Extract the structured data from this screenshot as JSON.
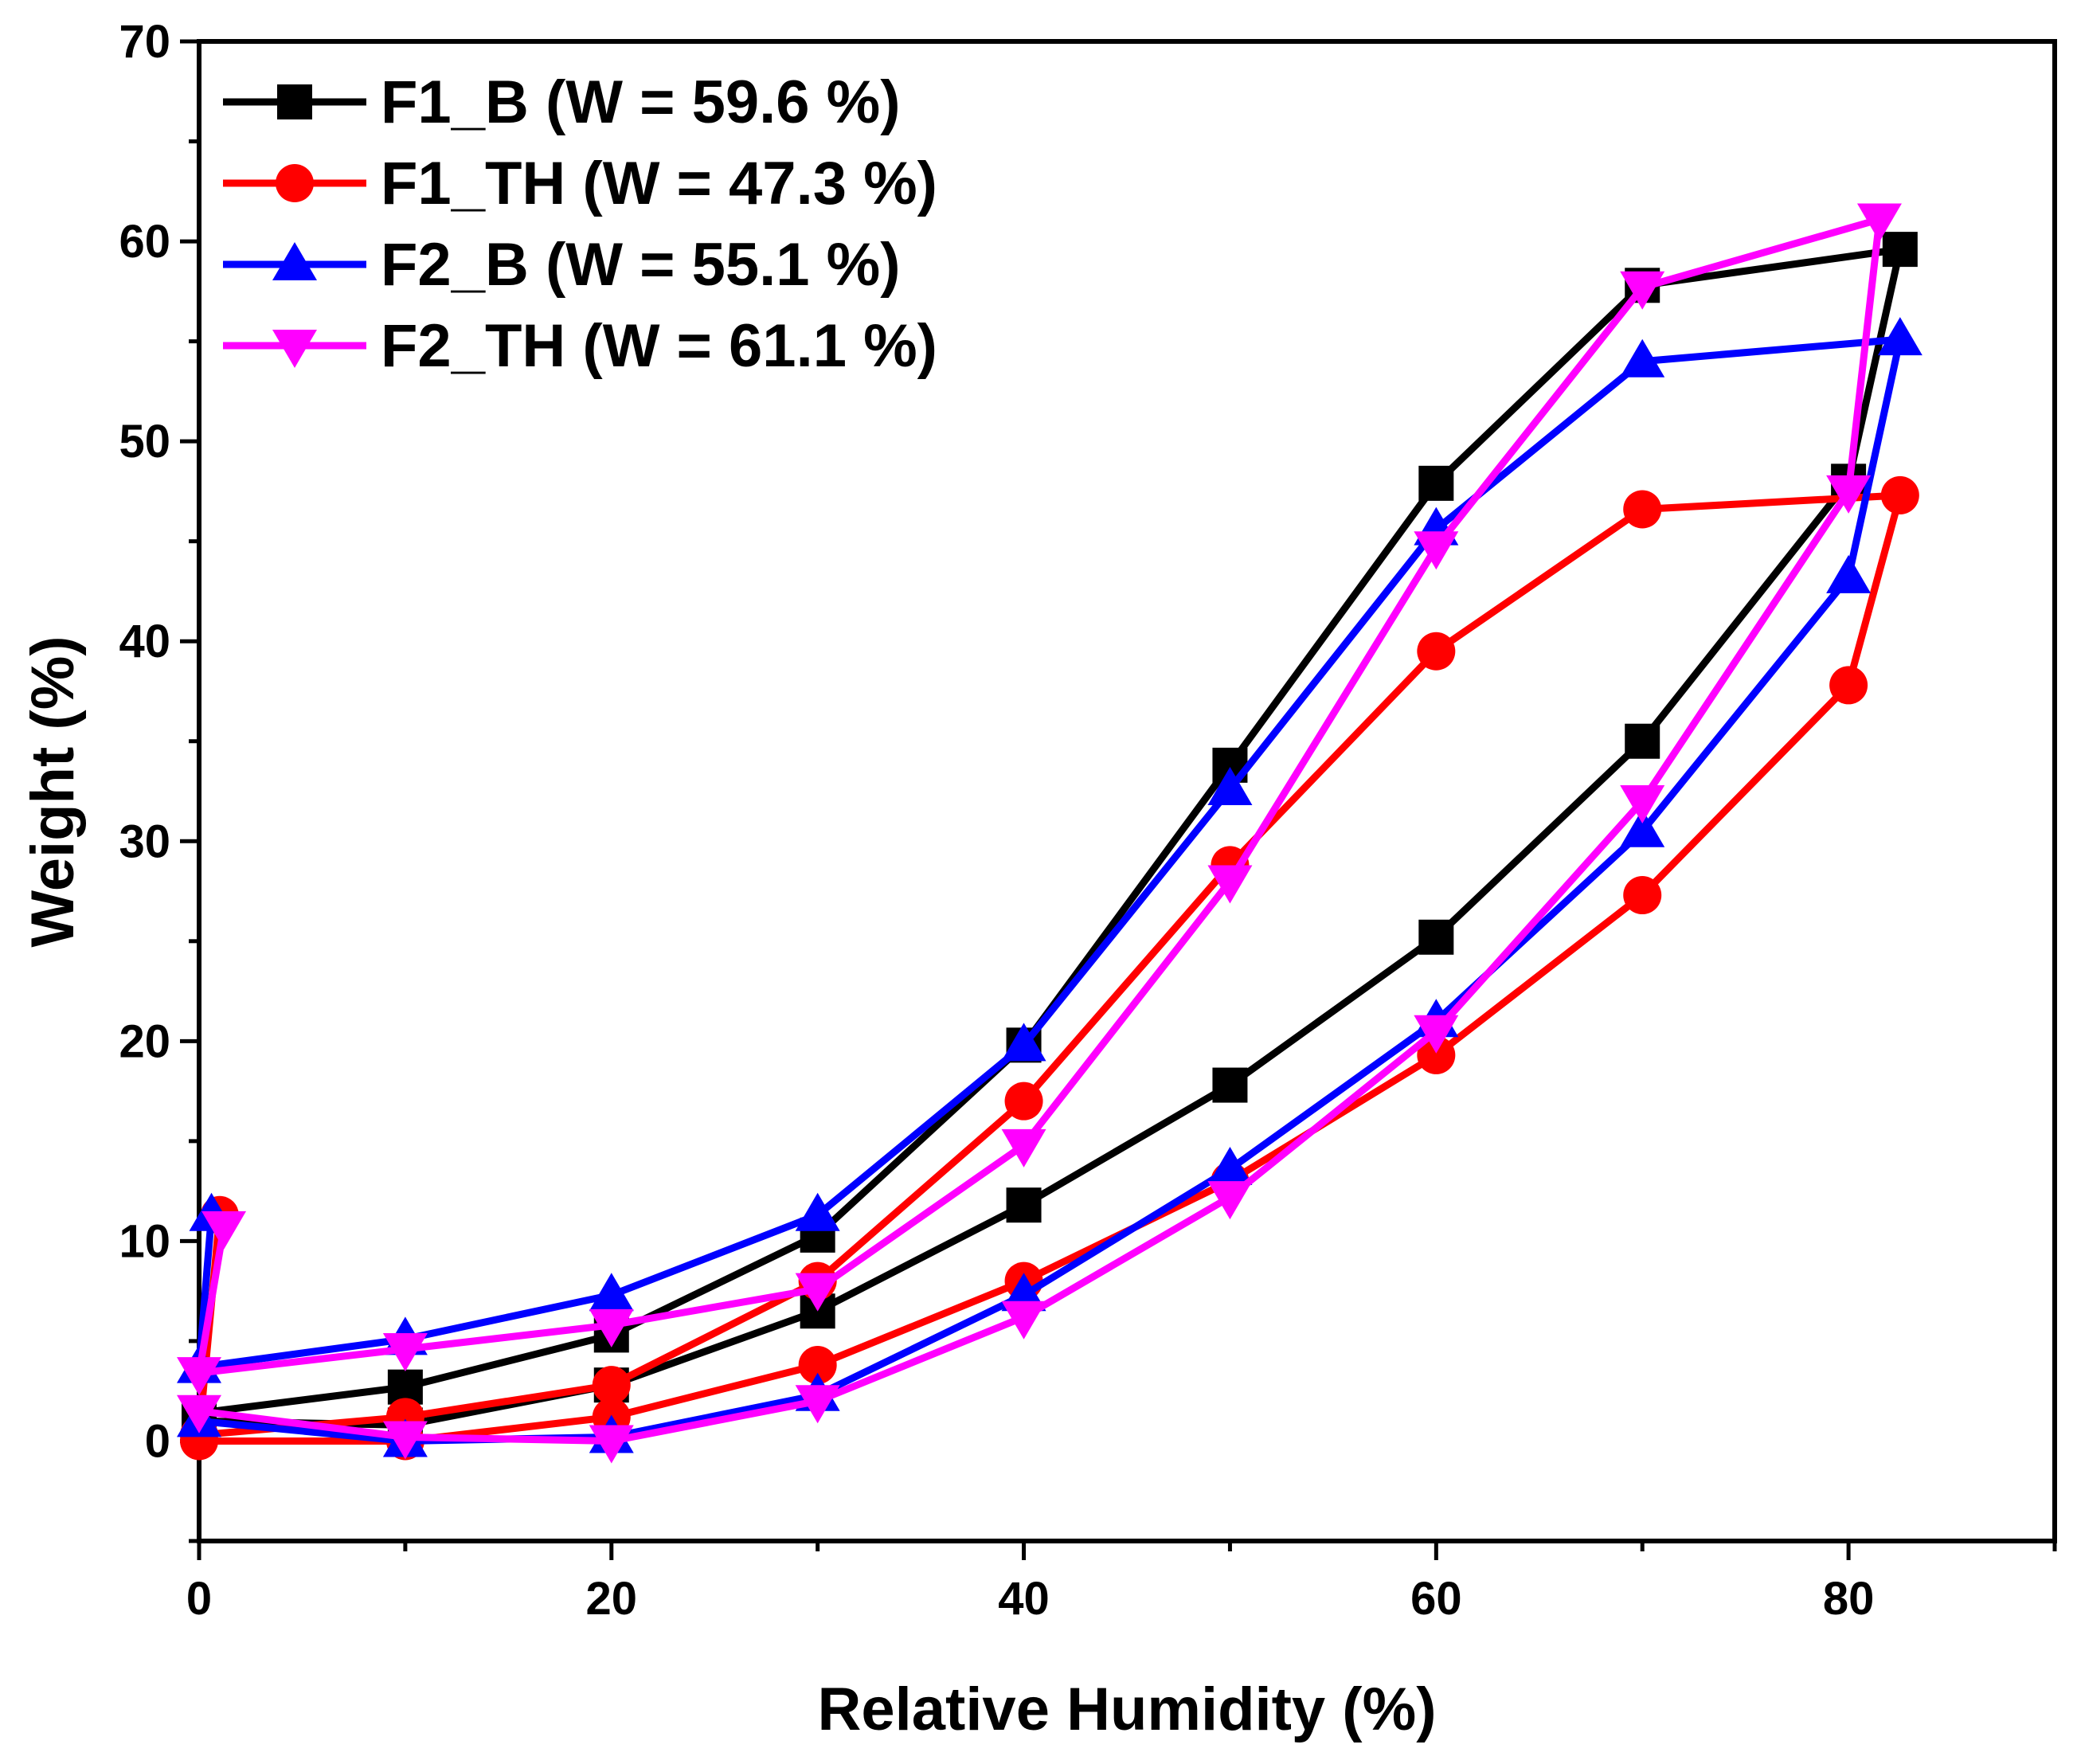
{
  "chart_data": {
    "type": "line",
    "title": "",
    "xlabel": "Relative Humidity (%)",
    "ylabel": "Weight (%)",
    "xlim": [
      0,
      90
    ],
    "ylim": [
      -5,
      70
    ],
    "xticks": [
      0,
      20,
      40,
      60,
      80
    ],
    "xtick_labels": [
      "0",
      "20",
      "40",
      "60",
      "80"
    ],
    "yticks": [
      0,
      10,
      20,
      30,
      40,
      50,
      60,
      70
    ],
    "ytick_labels": [
      "0",
      "10",
      "20",
      "30",
      "40",
      "50",
      "60",
      "70"
    ],
    "grid": false,
    "legend_position": "top-left",
    "series": [
      {
        "name": "F1_B (W = 59.6 %)",
        "color": "#000000",
        "marker": "square",
        "x": [
          0,
          10,
          20,
          30,
          40,
          50,
          60,
          70,
          80,
          82.5,
          70,
          60,
          50,
          40,
          30,
          20,
          10,
          0
        ],
        "y": [
          1.0,
          0.8,
          2.8,
          6.5,
          11.8,
          17.8,
          25.2,
          35.0,
          48.0,
          59.6,
          57.8,
          47.9,
          33.8,
          19.8,
          10.3,
          5.3,
          2.7,
          1.4
        ]
      },
      {
        "name": "F1_TH (W = 47.3 %)",
        "color": "#ff0000",
        "marker": "circle",
        "x": [
          0,
          10,
          20,
          30,
          40,
          50,
          60,
          70,
          80,
          82.5,
          70,
          60,
          50,
          40,
          30,
          20,
          10,
          0,
          1
        ],
        "y": [
          0.0,
          0.0,
          1.2,
          3.8,
          8.0,
          13.0,
          19.3,
          27.3,
          37.8,
          47.3,
          46.6,
          39.5,
          28.8,
          17.0,
          8.0,
          2.8,
          1.2,
          0.3,
          11.3
        ]
      },
      {
        "name": "F2_B (W = 55.1 %)",
        "color": "#0000ff",
        "marker": "triangle-up",
        "x": [
          0,
          10,
          20,
          30,
          40,
          50,
          60,
          70,
          80,
          82.5,
          70,
          60,
          50,
          40,
          30,
          20,
          10,
          0,
          0.6
        ],
        "y": [
          1.0,
          0.0,
          0.2,
          2.3,
          7.3,
          13.6,
          21.0,
          30.5,
          43.2,
          55.1,
          54.0,
          45.6,
          32.6,
          19.8,
          11.3,
          7.3,
          5.1,
          3.7,
          11.3
        ]
      },
      {
        "name": "F2_TH (W = 61.1 %)",
        "color": "#ff00ff",
        "marker": "triangle-down",
        "x": [
          0,
          10,
          20,
          30,
          40,
          50,
          60,
          70,
          80,
          81.5,
          70,
          60,
          50,
          40,
          30,
          20,
          10,
          0,
          1.2
        ],
        "y": [
          1.5,
          0.2,
          0.0,
          2.0,
          6.2,
          12.2,
          20.5,
          32.0,
          47.5,
          61.1,
          57.7,
          44.7,
          28.0,
          14.8,
          7.6,
          5.8,
          4.6,
          3.4,
          10.7
        ]
      }
    ]
  }
}
